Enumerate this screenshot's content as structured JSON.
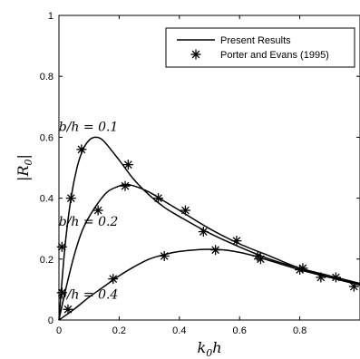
{
  "chart_data": {
    "type": "line",
    "xlabel_base": "k",
    "xlabel_sub": "0",
    "xlabel_tail": "h",
    "ylabel_base": "|R",
    "ylabel_sub": "0",
    "ylabel_tail": "|",
    "xlim": [
      0,
      1
    ],
    "ylim": [
      0,
      1
    ],
    "xticks": [
      0,
      0.2,
      0.4,
      0.6,
      0.8
    ],
    "xtick_labels": [
      "0",
      "0.2",
      "0.4",
      "0.6",
      "0.8"
    ],
    "yticks": [
      0,
      0.2,
      0.4,
      0.6,
      0.8,
      1
    ],
    "ytick_labels": [
      "0",
      "0.2",
      "0.4",
      "0.6",
      "0.8",
      "1"
    ],
    "grid": false,
    "legend_position": "top-right",
    "legend": {
      "line_label": "Present Results",
      "marker_label": "Porter and Evans (1995)"
    },
    "series": [
      {
        "label": "b/h = 0.1",
        "curve_x": [
          0,
          0.02,
          0.04,
          0.06,
          0.08,
          0.1,
          0.12,
          0.14,
          0.16,
          0.2,
          0.25,
          0.3,
          0.35,
          0.4,
          0.5,
          0.6,
          0.7,
          0.8,
          0.9,
          1.0
        ],
        "curve_y": [
          0,
          0.24,
          0.4,
          0.5,
          0.56,
          0.59,
          0.6,
          0.595,
          0.575,
          0.525,
          0.46,
          0.41,
          0.37,
          0.34,
          0.285,
          0.24,
          0.2,
          0.17,
          0.145,
          0.12
        ],
        "markers_x": [
          0.01,
          0.04,
          0.075,
          0.23,
          0.42,
          0.59,
          0.81,
          0.92
        ],
        "markers_y": [
          0.24,
          0.4,
          0.56,
          0.51,
          0.36,
          0.26,
          0.17,
          0.14
        ]
      },
      {
        "label": "b/h = 0.2",
        "curve_x": [
          0,
          0.02,
          0.05,
          0.08,
          0.12,
          0.16,
          0.2,
          0.22,
          0.25,
          0.3,
          0.35,
          0.4,
          0.5,
          0.6,
          0.7,
          0.8,
          0.9,
          1.0
        ],
        "curve_y": [
          0,
          0.09,
          0.21,
          0.3,
          0.37,
          0.42,
          0.44,
          0.445,
          0.44,
          0.42,
          0.39,
          0.36,
          0.3,
          0.25,
          0.21,
          0.17,
          0.14,
          0.115
        ],
        "markers_x": [
          0.01,
          0.13,
          0.22,
          0.33,
          0.48,
          0.66,
          0.87
        ],
        "markers_y": [
          0.09,
          0.36,
          0.44,
          0.4,
          0.29,
          0.21,
          0.14
        ]
      },
      {
        "label": "b/h = 0.4",
        "curve_x": [
          0,
          0.05,
          0.1,
          0.15,
          0.2,
          0.25,
          0.3,
          0.35,
          0.4,
          0.45,
          0.5,
          0.55,
          0.6,
          0.65,
          0.7,
          0.8,
          0.9,
          1.0
        ],
        "curve_y": [
          0,
          0.035,
          0.075,
          0.11,
          0.145,
          0.175,
          0.2,
          0.215,
          0.225,
          0.23,
          0.232,
          0.23,
          0.222,
          0.21,
          0.195,
          0.165,
          0.14,
          0.12
        ],
        "markers_x": [
          0.03,
          0.18,
          0.35,
          0.52,
          0.67,
          0.8,
          0.98
        ],
        "markers_y": [
          0.035,
          0.135,
          0.21,
          0.23,
          0.2,
          0.165,
          0.11
        ]
      }
    ],
    "annotations": [
      {
        "text": "b/h = 0.1",
        "x": 0.18,
        "y": 0.62
      },
      {
        "text": "b/h = 0.2",
        "x": 0.18,
        "y": 0.31
      },
      {
        "text": "b/h = 0.4",
        "x": 0.18,
        "y": 0.07
      }
    ]
  }
}
